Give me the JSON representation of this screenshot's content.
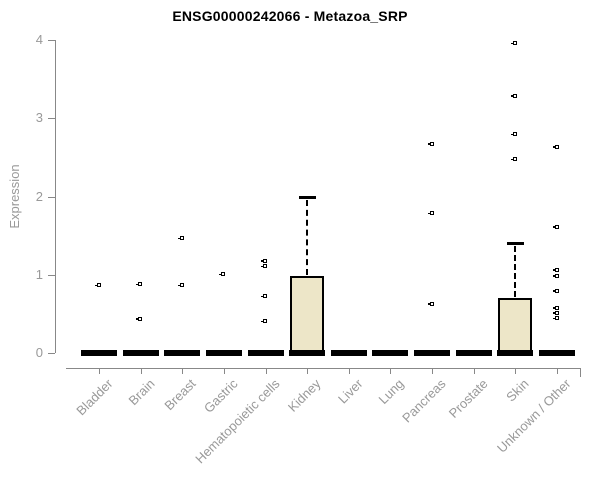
{
  "title": "ENSG00000242066 - Metazoa_SRP",
  "colors": {
    "box_fill": "#EDE6C8",
    "box_border": "#000000",
    "axis": "#888888",
    "tick_label": "#999999",
    "title_text": "#000000",
    "background": "#FFFFFF"
  },
  "chart_data": {
    "type": "boxplot",
    "title": "ENSG00000242066 - Metazoa_SRP",
    "xlabel": "",
    "ylabel": "Expression",
    "ylim": [
      0,
      4
    ],
    "yticks": [
      0,
      1,
      2,
      3,
      4
    ],
    "grid": false,
    "legend": false,
    "categories": [
      "Bladder",
      "Brain",
      "Breast",
      "Gastric",
      "Hematopoietic cells",
      "Kidney",
      "Liver",
      "Lung",
      "Pancreas",
      "Prostate",
      "Skin",
      "Unknown / Other"
    ],
    "series": [
      {
        "category": "Bladder",
        "median": 0,
        "q1": 0,
        "q3": 0,
        "whisker_low": 0,
        "whisker_high": 0,
        "outliers": [
          0.86
        ]
      },
      {
        "category": "Brain",
        "median": 0,
        "q1": 0,
        "q3": 0,
        "whisker_low": 0,
        "whisker_high": 0,
        "outliers": [
          0.87,
          0.43
        ]
      },
      {
        "category": "Breast",
        "median": 0,
        "q1": 0,
        "q3": 0,
        "whisker_low": 0,
        "whisker_high": 0,
        "outliers": [
          1.46,
          0.86
        ]
      },
      {
        "category": "Gastric",
        "median": 0,
        "q1": 0,
        "q3": 0,
        "whisker_low": 0,
        "whisker_high": 0,
        "outliers": [
          1.0
        ]
      },
      {
        "category": "Hematopoietic cells",
        "median": 0,
        "q1": 0,
        "q3": 0,
        "whisker_low": 0,
        "whisker_high": 0,
        "outliers": [
          1.17,
          1.1,
          0.72,
          0.4
        ]
      },
      {
        "category": "Kidney",
        "median": 0,
        "q1": 0,
        "q3": 0.98,
        "whisker_low": 0,
        "whisker_high": 2.0,
        "outliers": []
      },
      {
        "category": "Liver",
        "median": 0,
        "q1": 0,
        "q3": 0,
        "whisker_low": 0,
        "whisker_high": 0,
        "outliers": []
      },
      {
        "category": "Lung",
        "median": 0,
        "q1": 0,
        "q3": 0,
        "whisker_low": 0,
        "whisker_high": 0,
        "outliers": []
      },
      {
        "category": "Pancreas",
        "median": 0,
        "q1": 0,
        "q3": 0,
        "whisker_low": 0,
        "whisker_high": 0,
        "outliers": [
          2.67,
          1.78,
          0.62
        ]
      },
      {
        "category": "Prostate",
        "median": 0,
        "q1": 0,
        "q3": 0,
        "whisker_low": 0,
        "whisker_high": 0,
        "outliers": []
      },
      {
        "category": "Skin",
        "median": 0,
        "q1": 0,
        "q3": 0.7,
        "whisker_low": 0,
        "whisker_high": 1.41,
        "outliers": [
          3.95,
          3.28,
          2.79,
          2.47
        ]
      },
      {
        "category": "Unknown / Other",
        "median": 0,
        "q1": 0,
        "q3": 0,
        "whisker_low": 0,
        "whisker_high": 0,
        "outliers": [
          2.63,
          1.61,
          1.06,
          0.98,
          0.79,
          0.57,
          0.51,
          0.44
        ]
      }
    ]
  }
}
